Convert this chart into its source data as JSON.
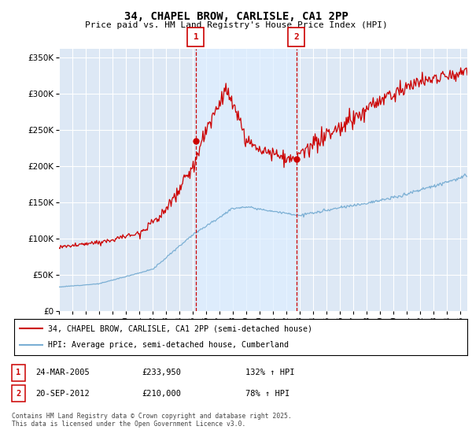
{
  "title_line1": "34, CHAPEL BROW, CARLISLE, CA1 2PP",
  "title_line2": "Price paid vs. HM Land Registry's House Price Index (HPI)",
  "ytick_values": [
    0,
    50000,
    100000,
    150000,
    200000,
    250000,
    300000,
    350000
  ],
  "ylim": [
    0,
    362000
  ],
  "xlim_start": 1995.0,
  "xlim_end": 2025.5,
  "transaction1": {
    "label": "1",
    "year": 2005.22,
    "price": 233950,
    "text": "24-MAR-2005",
    "amount": "£233,950",
    "hpi": "132% ↑ HPI"
  },
  "transaction2": {
    "label": "2",
    "year": 2012.72,
    "price": 210000,
    "text": "20-SEP-2012",
    "amount": "£210,000",
    "hpi": "78% ↑ HPI"
  },
  "legend_red_label": "34, CHAPEL BROW, CARLISLE, CA1 2PP (semi-detached house)",
  "legend_blue_label": "HPI: Average price, semi-detached house, Cumberland",
  "footer": "Contains HM Land Registry data © Crown copyright and database right 2025.\nThis data is licensed under the Open Government Licence v3.0.",
  "red_color": "#cc0000",
  "blue_color": "#7bafd4",
  "shade_color": "#ddeeff",
  "background_plot": "#dde8f5",
  "grid_color": "#ffffff",
  "box_edge_color": "#cc0000"
}
